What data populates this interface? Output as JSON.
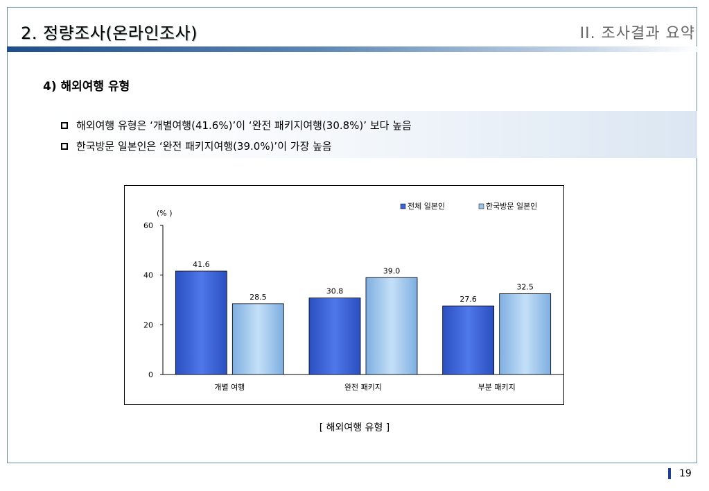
{
  "header": {
    "title": "2. 정량조사(온라인조사)",
    "section_label": "II. 조사결과 요약"
  },
  "section_heading": "4) 해외여행 유형",
  "summary": {
    "items": [
      "해외여행 유형은 ‘개별여행(41.6%)’이 ‘완전 패키지여행(30.8%)’ 보다 높음",
      "한국방문 일본인은 ‘완전 패키지여행(39.0%)’이 가장 높음"
    ]
  },
  "chart_data": {
    "type": "bar",
    "ylabel": "(% )",
    "ylim": [
      0,
      60
    ],
    "yticks": [
      0,
      20,
      40,
      60
    ],
    "categories": [
      "개별 여행",
      "완전 패키지",
      "부분 패키지"
    ],
    "series": [
      {
        "name": "전체 일본인",
        "values": [
          41.6,
          30.8,
          27.6
        ],
        "color": "#3d63d8"
      },
      {
        "name": "한국방문 일본인",
        "values": [
          28.5,
          39.0,
          32.5
        ],
        "color": "#9cc4ea"
      }
    ],
    "legend_position": "top-right",
    "grid": false
  },
  "caption": "[ 해외여행 유형 ]",
  "footer": {
    "page_number": "19"
  },
  "colors": {
    "accent": "#1e4f8c",
    "page_mark": "#1f3f96"
  }
}
